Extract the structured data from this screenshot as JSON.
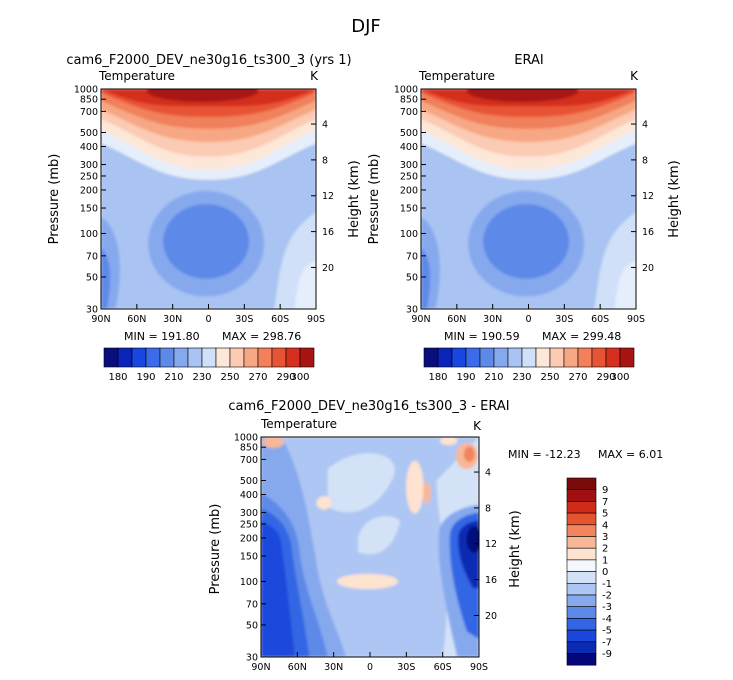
{
  "page_title": "DJF",
  "colors": {
    "bluescale": [
      "#0a0e7a",
      "#0b24b8",
      "#1947e0",
      "#3b6be8",
      "#5d8ae8",
      "#86a9ee",
      "#a9c3f2",
      "#cfe0f8"
    ],
    "warm": [
      "#fde7d8",
      "#fbcbb3",
      "#f7a783",
      "#f1805b",
      "#e85334",
      "#d42f1f",
      "#a81414",
      "#7e0d0d"
    ],
    "zero": "#f4f7fb",
    "diff": [
      "#04077a",
      "#0b2bb4",
      "#1a48dc",
      "#3366e4",
      "#5d8ae8",
      "#86a9ee",
      "#aec6f3",
      "#d3e2f7",
      "#f4f7fb",
      "#fde3d0",
      "#f8b797",
      "#f2845e",
      "#e6542f",
      "#cf2a18",
      "#a01010",
      "#7a0b0b"
    ]
  },
  "chart_data": [
    {
      "id": "model",
      "type": "heatmap",
      "title": "cam6_F2000_DEV_ne30g16_ts300_3 (yrs 1)",
      "variable": "Temperature",
      "units": "K",
      "xlabel": "",
      "ylabel": "Pressure (mb)",
      "y2label": "Height (km)",
      "x_ticks": [
        "90N",
        "60N",
        "30N",
        "0",
        "30S",
        "60S",
        "90S"
      ],
      "x_values": [
        90,
        60,
        30,
        0,
        -30,
        -60,
        -90
      ],
      "y_ticks": [
        30,
        50,
        70,
        100,
        150,
        200,
        250,
        300,
        400,
        500,
        700,
        850,
        1000
      ],
      "y_tick_labels": [
        "30",
        "50",
        "70",
        "100",
        "150",
        "200",
        "250",
        "300",
        "400",
        "500",
        "700",
        "850",
        "1000"
      ],
      "y2_ticks": [
        20,
        16,
        12,
        8,
        4
      ],
      "ylim": [
        1000,
        30
      ],
      "xlim": [
        90,
        -90
      ],
      "min_label": "MIN = 191.80",
      "max_label": "MAX = 298.76",
      "min": 191.8,
      "max": 298.76,
      "levels": [
        180,
        185,
        190,
        200,
        210,
        220,
        230,
        240,
        250,
        260,
        270,
        280,
        290,
        300
      ],
      "colorbar_labels": [
        "180",
        "190",
        "210",
        "230",
        "250",
        "270",
        "290",
        "300"
      ]
    },
    {
      "id": "obs",
      "type": "heatmap",
      "title": "ERAI",
      "variable": "Temperature",
      "units": "K",
      "ylabel": "Pressure (mb)",
      "y2label": "Height (km)",
      "x_ticks": [
        "90N",
        "60N",
        "30N",
        "0",
        "30S",
        "60S",
        "90S"
      ],
      "x_values": [
        90,
        60,
        30,
        0,
        -30,
        -60,
        -90
      ],
      "y_ticks": [
        30,
        50,
        70,
        100,
        150,
        200,
        250,
        300,
        400,
        500,
        700,
        850,
        1000
      ],
      "y_tick_labels": [
        "30",
        "50",
        "70",
        "100",
        "150",
        "200",
        "250",
        "300",
        "400",
        "500",
        "700",
        "850",
        "1000"
      ],
      "y2_ticks": [
        20,
        16,
        12,
        8,
        4
      ],
      "ylim": [
        1000,
        30
      ],
      "xlim": [
        90,
        -90
      ],
      "min_label": "MIN = 190.59",
      "max_label": "MAX = 299.48",
      "min": 190.59,
      "max": 299.48,
      "levels": [
        180,
        185,
        190,
        200,
        210,
        220,
        230,
        240,
        250,
        260,
        270,
        280,
        290,
        300
      ],
      "colorbar_labels": [
        "180",
        "190",
        "210",
        "230",
        "250",
        "270",
        "290",
        "300"
      ]
    },
    {
      "id": "diff",
      "type": "heatmap",
      "title": "cam6_F2000_DEV_ne30g16_ts300_3 - ERAI",
      "variable": "Temperature",
      "units": "K",
      "ylabel": "Pressure (mb)",
      "y2label": "Height (km)",
      "x_ticks": [
        "90N",
        "60N",
        "30N",
        "0",
        "30S",
        "60S",
        "90S"
      ],
      "x_values": [
        90,
        60,
        30,
        0,
        -30,
        -60,
        -90
      ],
      "y_ticks": [
        30,
        50,
        70,
        100,
        150,
        200,
        250,
        300,
        400,
        500,
        700,
        850,
        1000
      ],
      "y_tick_labels": [
        "30",
        "50",
        "70",
        "100",
        "150",
        "200",
        "250",
        "300",
        "400",
        "500",
        "700",
        "850",
        "1000"
      ],
      "y2_ticks": [
        20,
        16,
        12,
        8,
        4
      ],
      "ylim": [
        1000,
        30
      ],
      "xlim": [
        90,
        -90
      ],
      "min_label": "MIN = -12.23",
      "max_label": "MAX =   6.01",
      "min": -12.23,
      "max": 6.01,
      "levels": [
        -9,
        -7,
        -5,
        -4,
        -3,
        -2,
        -1,
        0,
        1,
        2,
        3,
        4,
        5,
        7,
        9
      ],
      "colorbar_labels": [
        "9",
        "7",
        "5",
        "4",
        "3",
        "2",
        "1",
        "0",
        "-1",
        "-2",
        "-3",
        "-4",
        "-5",
        "-7",
        "-9"
      ]
    }
  ]
}
